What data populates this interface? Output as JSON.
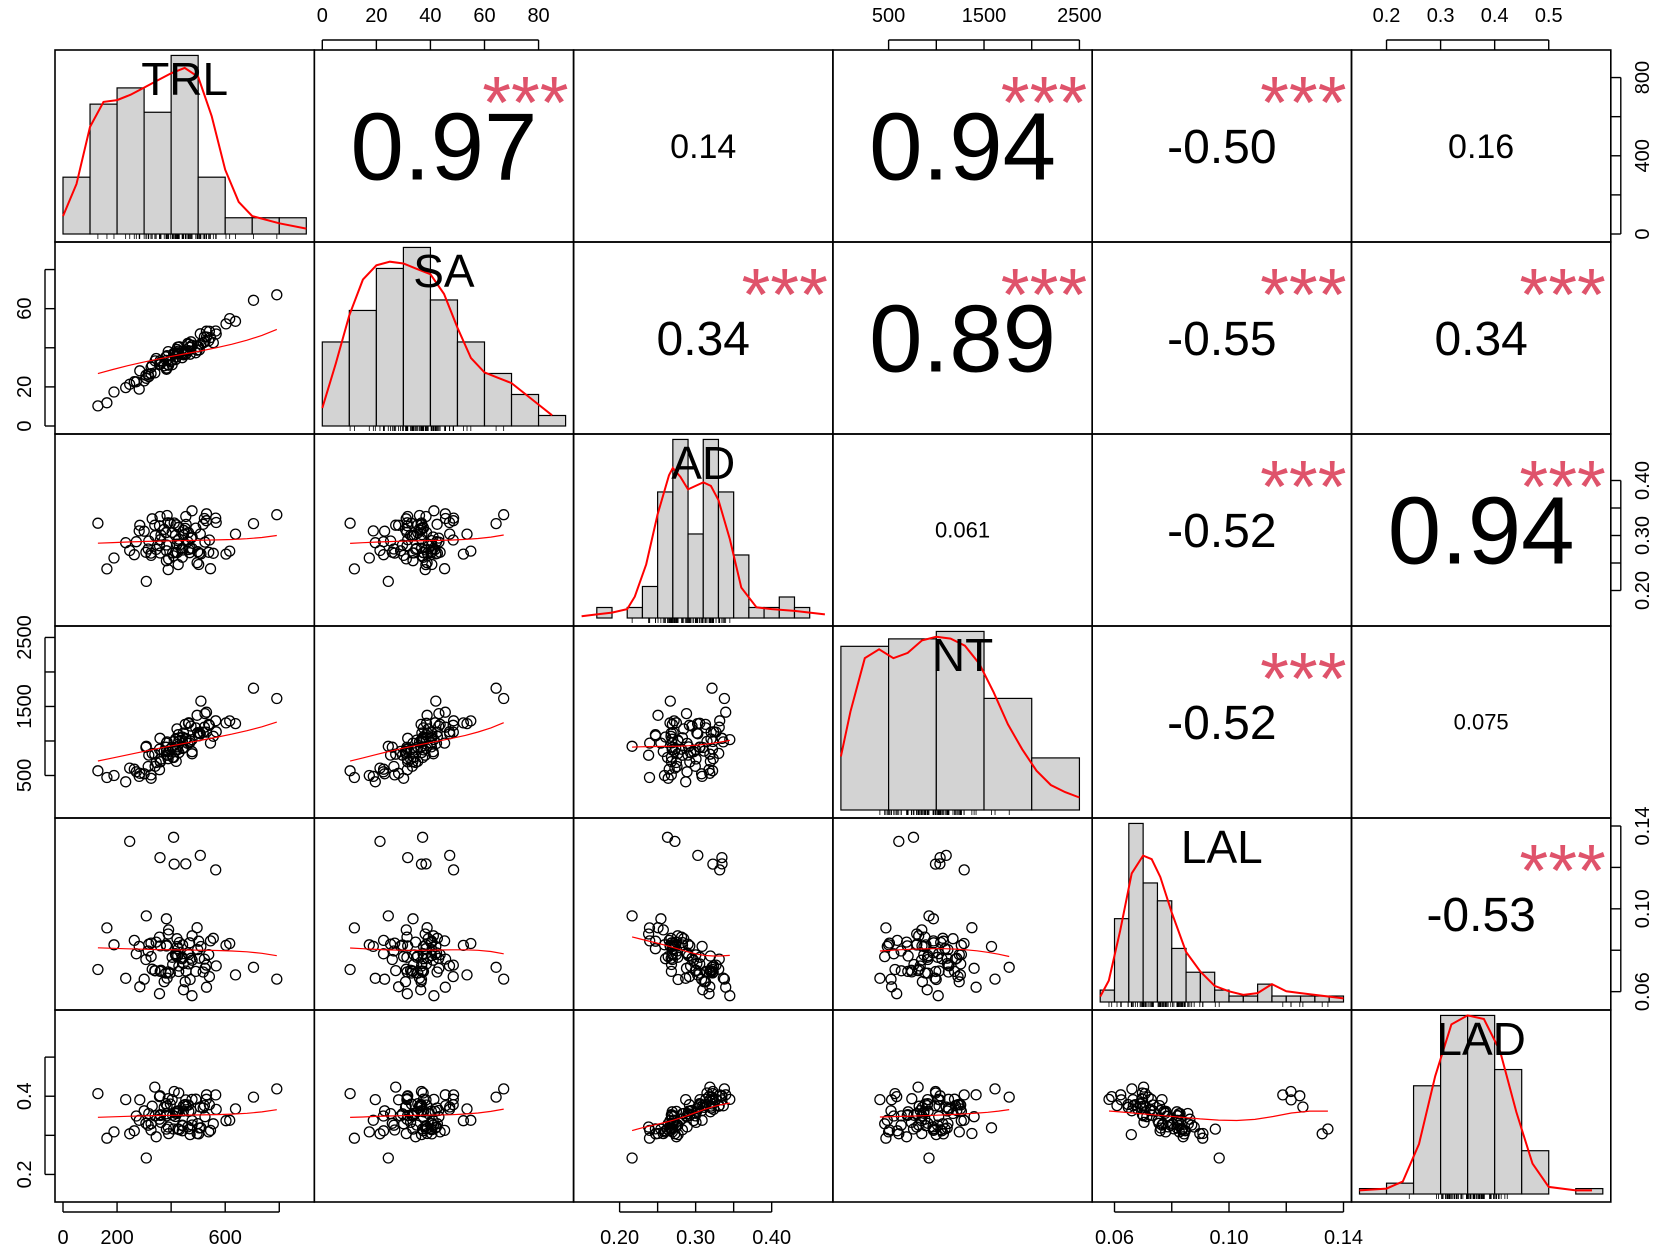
{
  "chart_data": {
    "type": "scatter",
    "subtype": "correlation-matrix",
    "variables": [
      "TRL",
      "SA",
      "AD",
      "NT",
      "LAL",
      "LAD"
    ],
    "diagonal": [
      {
        "label": "TRL",
        "bins": [
          0,
          100,
          200,
          300,
          400,
          500,
          600,
          700,
          800,
          900
        ],
        "counts": [
          7,
          16,
          18,
          15,
          22,
          7,
          2,
          2,
          2
        ],
        "density": [
          [
            0,
            0.1
          ],
          [
            50,
            0.28
          ],
          [
            100,
            0.6
          ],
          [
            150,
            0.74
          ],
          [
            200,
            0.75
          ],
          [
            250,
            0.78
          ],
          [
            300,
            0.82
          ],
          [
            350,
            0.86
          ],
          [
            400,
            0.9
          ],
          [
            450,
            0.93
          ],
          [
            500,
            0.88
          ],
          [
            550,
            0.66
          ],
          [
            600,
            0.36
          ],
          [
            650,
            0.18
          ],
          [
            700,
            0.1
          ],
          [
            800,
            0.06
          ],
          [
            900,
            0.03
          ]
        ]
      },
      {
        "label": "SA",
        "bins": [
          0,
          10,
          20,
          30,
          40,
          50,
          60,
          70,
          80,
          90
        ],
        "counts": [
          8,
          11,
          15,
          17,
          12,
          8,
          5,
          3,
          1
        ],
        "density": [
          [
            0,
            0.1
          ],
          [
            5,
            0.35
          ],
          [
            10,
            0.62
          ],
          [
            15,
            0.82
          ],
          [
            20,
            0.9
          ],
          [
            25,
            0.92
          ],
          [
            30,
            0.91
          ],
          [
            35,
            0.88
          ],
          [
            40,
            0.85
          ],
          [
            45,
            0.74
          ],
          [
            50,
            0.55
          ],
          [
            55,
            0.38
          ],
          [
            60,
            0.3
          ],
          [
            65,
            0.27
          ],
          [
            70,
            0.24
          ],
          [
            75,
            0.18
          ],
          [
            80,
            0.12
          ],
          [
            85,
            0.06
          ]
        ]
      },
      {
        "label": "AD",
        "bins": [
          0.15,
          0.17,
          0.19,
          0.21,
          0.23,
          0.25,
          0.27,
          0.29,
          0.31,
          0.33,
          0.35,
          0.37,
          0.39,
          0.41,
          0.43,
          0.45,
          0.47
        ],
        "counts": [
          0,
          1,
          0,
          1,
          3,
          12,
          17,
          8,
          17,
          12,
          6,
          1,
          1,
          2,
          1,
          0
        ],
        "density": [
          [
            0.15,
            0.01
          ],
          [
            0.17,
            0.02
          ],
          [
            0.19,
            0.03
          ],
          [
            0.21,
            0.05
          ],
          [
            0.22,
            0.12
          ],
          [
            0.235,
            0.3
          ],
          [
            0.25,
            0.58
          ],
          [
            0.265,
            0.8
          ],
          [
            0.27,
            0.84
          ],
          [
            0.28,
            0.79
          ],
          [
            0.29,
            0.72
          ],
          [
            0.3,
            0.74
          ],
          [
            0.31,
            0.76
          ],
          [
            0.32,
            0.74
          ],
          [
            0.33,
            0.66
          ],
          [
            0.345,
            0.44
          ],
          [
            0.36,
            0.17
          ],
          [
            0.38,
            0.06
          ],
          [
            0.4,
            0.05
          ],
          [
            0.43,
            0.04
          ],
          [
            0.47,
            0.02
          ]
        ]
      },
      {
        "label": "NT",
        "bins": [
          0,
          500,
          1000,
          1500,
          2000,
          2500
        ],
        "counts": [
          22,
          23,
          24,
          15,
          7
        ],
        "density": [
          [
            0,
            0.3
          ],
          [
            100,
            0.55
          ],
          [
            250,
            0.85
          ],
          [
            400,
            0.9
          ],
          [
            550,
            0.85
          ],
          [
            700,
            0.88
          ],
          [
            850,
            0.95
          ],
          [
            1000,
            0.97
          ],
          [
            1150,
            0.96
          ],
          [
            1300,
            0.92
          ],
          [
            1450,
            0.82
          ],
          [
            1600,
            0.66
          ],
          [
            1750,
            0.48
          ],
          [
            1900,
            0.34
          ],
          [
            2050,
            0.22
          ],
          [
            2200,
            0.14
          ],
          [
            2350,
            0.1
          ],
          [
            2500,
            0.07
          ]
        ]
      },
      {
        "label": "LAL",
        "bins": [
          0.055,
          0.06,
          0.065,
          0.07,
          0.075,
          0.08,
          0.085,
          0.09,
          0.095,
          0.1,
          0.105,
          0.11,
          0.115,
          0.12,
          0.125,
          0.13,
          0.135,
          0.14
        ],
        "counts": [
          2,
          14,
          30,
          20,
          17,
          9,
          5,
          5,
          2,
          1,
          1,
          3,
          1,
          1,
          1,
          1,
          1
        ],
        "density": [
          [
            0.055,
            0.03
          ],
          [
            0.058,
            0.12
          ],
          [
            0.062,
            0.4
          ],
          [
            0.066,
            0.72
          ],
          [
            0.07,
            0.82
          ],
          [
            0.073,
            0.8
          ],
          [
            0.076,
            0.7
          ],
          [
            0.08,
            0.5
          ],
          [
            0.085,
            0.28
          ],
          [
            0.09,
            0.17
          ],
          [
            0.095,
            0.09
          ],
          [
            0.1,
            0.06
          ],
          [
            0.105,
            0.04
          ],
          [
            0.11,
            0.05
          ],
          [
            0.115,
            0.1
          ],
          [
            0.12,
            0.06
          ],
          [
            0.125,
            0.05
          ],
          [
            0.13,
            0.04
          ],
          [
            0.14,
            0.02
          ]
        ]
      },
      {
        "label": "LAD",
        "bins": [
          0.15,
          0.2,
          0.25,
          0.3,
          0.35,
          0.4,
          0.45,
          0.5,
          0.55,
          0.6
        ],
        "counts": [
          1,
          2,
          20,
          33,
          33,
          23,
          8,
          0,
          1
        ],
        "density": [
          [
            0.15,
            0.02
          ],
          [
            0.2,
            0.03
          ],
          [
            0.23,
            0.07
          ],
          [
            0.26,
            0.28
          ],
          [
            0.29,
            0.66
          ],
          [
            0.32,
            0.95
          ],
          [
            0.35,
            1.0
          ],
          [
            0.38,
            0.98
          ],
          [
            0.41,
            0.8
          ],
          [
            0.44,
            0.46
          ],
          [
            0.47,
            0.17
          ],
          [
            0.5,
            0.04
          ],
          [
            0.55,
            0.02
          ],
          [
            0.58,
            0.02
          ]
        ]
      }
    ],
    "correlations": [
      {
        "row": 0,
        "col": 1,
        "r": "0.97",
        "stars": "***"
      },
      {
        "row": 0,
        "col": 2,
        "r": "0.14",
        "stars": ""
      },
      {
        "row": 0,
        "col": 3,
        "r": "0.94",
        "stars": "***"
      },
      {
        "row": 0,
        "col": 4,
        "r": "-0.50",
        "stars": "***"
      },
      {
        "row": 0,
        "col": 5,
        "r": "0.16",
        "stars": ""
      },
      {
        "row": 1,
        "col": 2,
        "r": "0.34",
        "stars": "***"
      },
      {
        "row": 1,
        "col": 3,
        "r": "0.89",
        "stars": "***"
      },
      {
        "row": 1,
        "col": 4,
        "r": "-0.55",
        "stars": "***"
      },
      {
        "row": 1,
        "col": 5,
        "r": "0.34",
        "stars": "***"
      },
      {
        "row": 2,
        "col": 3,
        "r": "0.061",
        "stars": ""
      },
      {
        "row": 2,
        "col": 4,
        "r": "-0.52",
        "stars": "***"
      },
      {
        "row": 2,
        "col": 5,
        "r": "0.94",
        "stars": "***"
      },
      {
        "row": 3,
        "col": 4,
        "r": "-0.52",
        "stars": "***"
      },
      {
        "row": 3,
        "col": 5,
        "r": "0.075",
        "stars": ""
      },
      {
        "row": 4,
        "col": 5,
        "r": "-0.53",
        "stars": "***"
      }
    ],
    "axes": {
      "ranges": {
        "TRL": [
          0,
          900
        ],
        "SA": [
          0,
          90
        ],
        "AD": [
          0.15,
          0.47
        ],
        "NT": [
          0,
          2550
        ],
        "LAL": [
          0.055,
          0.14
        ],
        "LAD": [
          0.15,
          0.6
        ]
      },
      "top": [
        {
          "col": 1,
          "ticks": [
            "0",
            "20",
            "40",
            "60",
            "80"
          ],
          "values": [
            0,
            20,
            40,
            60,
            80
          ]
        },
        {
          "col": 3,
          "ticks": [
            "500",
            "1500",
            "2500"
          ],
          "minor": [
            1000,
            2000
          ],
          "values": [
            500,
            1500,
            2500
          ]
        },
        {
          "col": 5,
          "ticks": [
            "0.2",
            "0.3",
            "0.4",
            "0.5"
          ],
          "values": [
            0.2,
            0.3,
            0.4,
            0.5
          ]
        }
      ],
      "bottom": [
        {
          "col": 0,
          "ticks": [
            "0",
            "200",
            "600"
          ],
          "minor": [
            400,
            800
          ],
          "values": [
            0,
            200,
            600
          ]
        },
        {
          "col": 2,
          "ticks": [
            "0.20",
            "0.30",
            "0.40"
          ],
          "minor": [
            0.25,
            0.35
          ],
          "values": [
            0.2,
            0.3,
            0.4
          ]
        },
        {
          "col": 4,
          "ticks": [
            "0.06",
            "0.10",
            "0.14"
          ],
          "minor": [
            0.08,
            0.12
          ],
          "values": [
            0.06,
            0.1,
            0.14
          ]
        }
      ],
      "left": [
        {
          "row": 1,
          "ticks": [
            "0",
            "20",
            "60"
          ],
          "minor": [
            40,
            80
          ],
          "values": [
            0,
            20,
            60
          ]
        },
        {
          "row": 3,
          "ticks": [
            "500",
            "1500",
            "2500"
          ],
          "minor": [
            1000,
            2000
          ],
          "values": [
            500,
            1500,
            2500
          ]
        },
        {
          "row": 5,
          "ticks": [
            "0.2",
            "0.4"
          ],
          "minor": [
            0.3,
            0.5
          ],
          "values": [
            0.2,
            0.4
          ]
        }
      ],
      "right": [
        {
          "row": 0,
          "ticks": [
            "0",
            "400",
            "800"
          ],
          "minor": [
            200,
            600
          ],
          "values": [
            0,
            400,
            800
          ]
        },
        {
          "row": 2,
          "ticks": [
            "0.20",
            "0.30",
            "0.40"
          ],
          "minor": [
            0.25,
            0.35
          ],
          "values": [
            0.2,
            0.3,
            0.4
          ]
        },
        {
          "row": 4,
          "ticks": [
            "0.06",
            "0.10",
            "0.14"
          ],
          "minor": [
            0.08,
            0.12
          ],
          "values": [
            0.06,
            0.1,
            0.14
          ]
        }
      ]
    },
    "colors": {
      "stars": "#DF536B",
      "density": "#FF0000",
      "loess": "#FF0000",
      "bar_fill": "#D3D3D3",
      "points": "#000000",
      "frame": "#000000"
    },
    "grid": false,
    "legend": "none"
  }
}
